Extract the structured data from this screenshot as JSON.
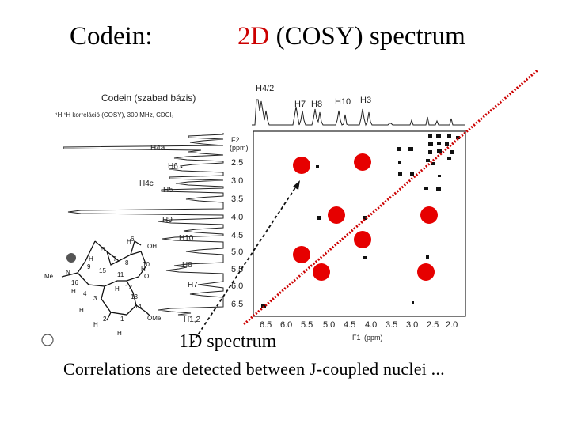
{
  "slide": {
    "title_left": "Codein:",
    "title_right_colored": "2D",
    "title_right_rest": " (COSY) spectrum",
    "label_1d": "1D spectrum",
    "caption": "Correlations are detected between J-coupled nuclei ..."
  },
  "colors": {
    "accent_red": "#e60000",
    "diagonal_red": "#cc0000",
    "ink": "#111111"
  },
  "figure": {
    "header": "Codein (szabad bázis)",
    "subheader": "¹H,¹H korreláció (COSY), 300 MHz, CDCl₃",
    "f2_label": "F2",
    "f2_unit": "(ppm)",
    "f1_label": "F1",
    "f1_unit": "(ppm)",
    "y_ticks": [
      "2.5",
      "3.0",
      "3.5",
      "4.0",
      "4.5",
      "5.0",
      "5.5",
      "6.0",
      "6.5"
    ],
    "x_ticks": [
      "6.5",
      "6.0",
      "5.5",
      "5.0",
      "4.5",
      "4.0",
      "3.5",
      "3.0",
      "2.5",
      "2.0"
    ],
    "top_labels": [
      "H4/2",
      "H7",
      "H8",
      "H10",
      "H3"
    ],
    "side_labels": [
      "H4a",
      "H6",
      "H4c",
      "H5",
      "H9",
      "H10",
      "H8",
      "H7",
      "H1,2"
    ],
    "molecule_atoms": [
      "5",
      "6",
      "OH",
      "H",
      "10",
      "H",
      "7",
      "8",
      "15",
      "9",
      "H",
      "11",
      "O",
      "Me",
      "N",
      "16",
      "H",
      "4",
      "3",
      "14",
      "OMe",
      "2",
      "1",
      "H",
      "H",
      "12",
      "13",
      "H",
      "H"
    ]
  }
}
